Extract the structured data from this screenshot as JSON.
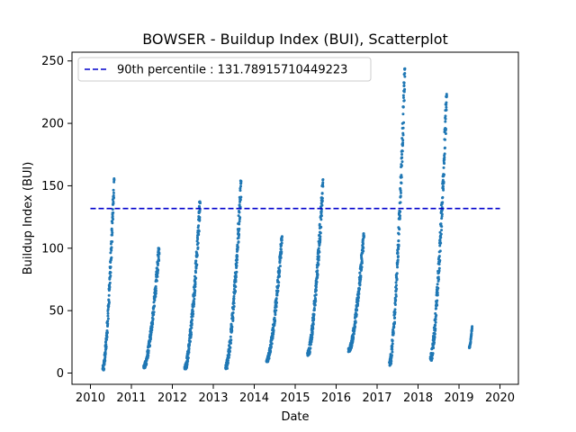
{
  "chart_data": {
    "type": "scatter",
    "title": "BOWSER - Buildup Index (BUI), Scatterplot",
    "xlabel": "Date",
    "ylabel": "Buildup Index (BUI)",
    "xlim": [
      2009.55,
      2020.45
    ],
    "ylim": [
      -9,
      257
    ],
    "x_ticks": [
      2010,
      2011,
      2012,
      2013,
      2014,
      2015,
      2016,
      2017,
      2018,
      2019,
      2020
    ],
    "x_tick_labels": [
      "2010",
      "2011",
      "2012",
      "2013",
      "2014",
      "2015",
      "2016",
      "2017",
      "2018",
      "2019",
      "2020"
    ],
    "y_ticks": [
      0,
      50,
      100,
      150,
      200,
      250
    ],
    "y_tick_labels": [
      "0",
      "50",
      "100",
      "150",
      "200",
      "250"
    ],
    "grid": false,
    "legend_position": "top-left",
    "reference_line": {
      "label": "90th percentile : 131.78915710449223",
      "value": 131.78915710449223,
      "style": "dashed",
      "color": "#0000cc"
    },
    "series": [
      {
        "color": "#1f77b4",
        "segments": [
          {
            "x_start": 2010.3,
            "x_end": 2010.58,
            "y_start": 2,
            "y_end": 157
          },
          {
            "x_start": 2011.3,
            "x_end": 2011.68,
            "y_start": 4,
            "y_end": 101
          },
          {
            "x_start": 2012.3,
            "x_end": 2012.68,
            "y_start": 3,
            "y_end": 138
          },
          {
            "x_start": 2013.3,
            "x_end": 2013.68,
            "y_start": 3,
            "y_end": 154
          },
          {
            "x_start": 2014.3,
            "x_end": 2014.68,
            "y_start": 9,
            "y_end": 111
          },
          {
            "x_start": 2015.3,
            "x_end": 2015.68,
            "y_start": 14,
            "y_end": 155
          },
          {
            "x_start": 2016.3,
            "x_end": 2016.68,
            "y_start": 17,
            "y_end": 112
          },
          {
            "x_start": 2017.3,
            "x_end": 2017.68,
            "y_start": 6,
            "y_end": 245
          },
          {
            "x_start": 2018.3,
            "x_end": 2018.7,
            "y_start": 10,
            "y_end": 224
          },
          {
            "x_start": 2019.25,
            "x_end": 2019.32,
            "y_start": 20,
            "y_end": 38
          }
        ]
      }
    ]
  }
}
